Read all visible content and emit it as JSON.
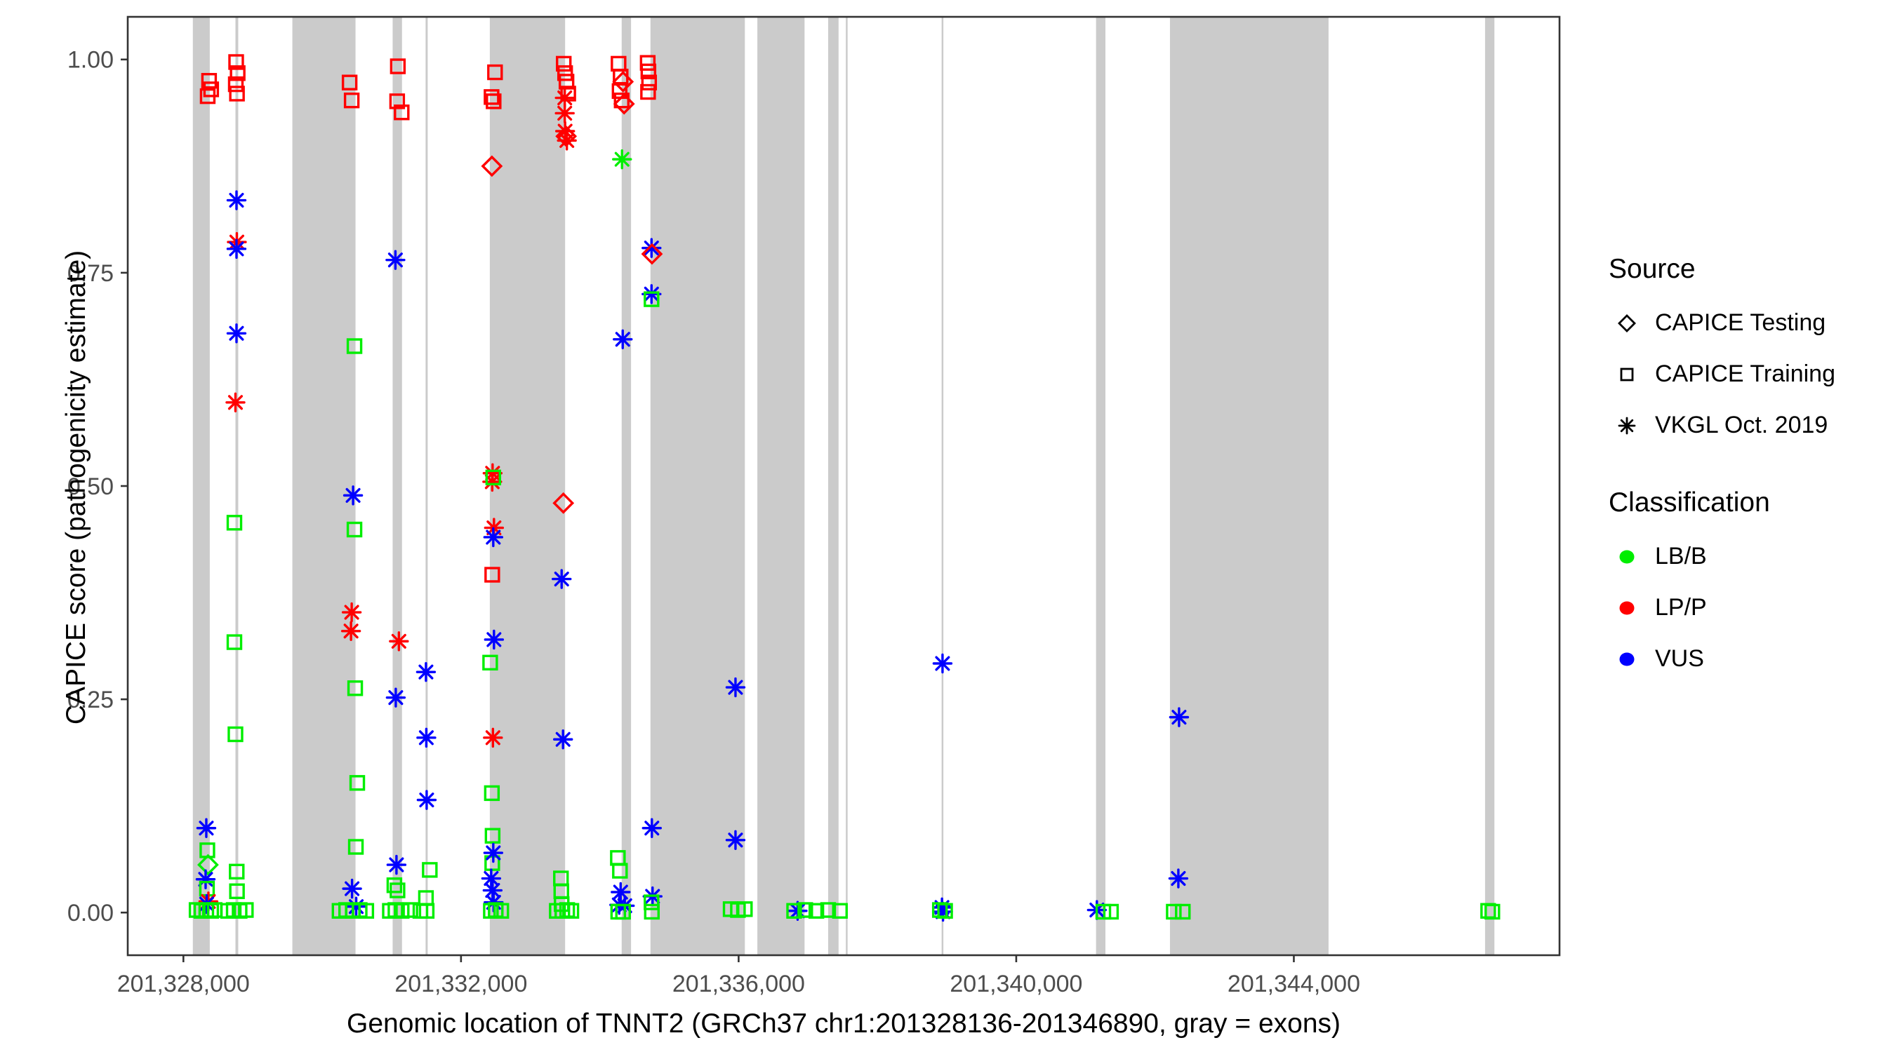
{
  "figure": {
    "background": "#ffffff",
    "panel_border_color": "#333333",
    "tick_color": "#333333",
    "tick_label_color": "#4d4d4d"
  },
  "chart_data": {
    "type": "scatter",
    "title": "",
    "xlabel": "Genomic location of TNNT2 (GRCh37 chr1:201328136-201346890, gray = exons)",
    "ylabel": "CAPICE score (pathogenicity estimate)",
    "x_domain": [
      201327198,
      201347828
    ],
    "y_domain": [
      -0.05,
      1.05
    ],
    "grid": false,
    "legend_position": "right",
    "x_ticks": [
      {
        "value": 201328000,
        "label": "201,328,000"
      },
      {
        "value": 201332000,
        "label": "201,332,000"
      },
      {
        "value": 201336000,
        "label": "201,336,000"
      },
      {
        "value": 201340000,
        "label": "201,340,000"
      },
      {
        "value": 201344000,
        "label": "201,344,000"
      }
    ],
    "y_ticks": [
      {
        "value": 0.0,
        "label": "0.00"
      },
      {
        "value": 0.25,
        "label": "0.25"
      },
      {
        "value": 0.5,
        "label": "0.50"
      },
      {
        "value": 0.75,
        "label": "0.75"
      },
      {
        "value": 1.0,
        "label": "1.00"
      }
    ],
    "exon_color": "#cbcbcb",
    "exons": [
      [
        201328136,
        201328380
      ],
      [
        201328750,
        201328790
      ],
      [
        201329570,
        201330480
      ],
      [
        201331015,
        201331150
      ],
      [
        201331490,
        201331520
      ],
      [
        201332415,
        201333500
      ],
      [
        201334315,
        201334450
      ],
      [
        201334730,
        201336090
      ],
      [
        201336270,
        201336950
      ],
      [
        201337290,
        201337440
      ],
      [
        201337545,
        201337570
      ],
      [
        201338925,
        201338950
      ],
      [
        201341150,
        201341285
      ],
      [
        201342215,
        201344500
      ],
      [
        201346755,
        201346890
      ]
    ],
    "class_colors": {
      "LB/B": "#00ee00",
      "LP/P": "#ff0000",
      "VUS": "#0000ff"
    },
    "source_shapes": {
      "CAPICE Testing": "diamond",
      "CAPICE Training": "square",
      "VKGL Oct. 2019": "asterisk"
    },
    "legend": {
      "source": {
        "title": "Source",
        "items": [
          {
            "label": "CAPICE Testing",
            "shape": "diamond"
          },
          {
            "label": "CAPICE Training",
            "shape": "square"
          },
          {
            "label": "VKGL Oct. 2019",
            "shape": "asterisk"
          }
        ]
      },
      "classification": {
        "title": "Classification",
        "items": [
          {
            "label": "LB/B",
            "color": "#00ee00"
          },
          {
            "label": "LP/P",
            "color": "#ff0000"
          },
          {
            "label": "VUS",
            "color": "#0000ff"
          }
        ]
      }
    },
    "point_format": [
      "genomic_position",
      "capice_score",
      "source_shape",
      "classification"
    ],
    "points": [
      [
        201328370,
        0.975,
        "square",
        "LP/P"
      ],
      [
        201328400,
        0.965,
        "square",
        "LP/P"
      ],
      [
        201328350,
        0.957,
        "square",
        "LP/P"
      ],
      [
        201328330,
        0.099,
        "asterisk",
        "VUS"
      ],
      [
        201328345,
        0.073,
        "square",
        "LB/B"
      ],
      [
        201328355,
        0.056,
        "diamond",
        "LB/B"
      ],
      [
        201328320,
        0.039,
        "asterisk",
        "VUS"
      ],
      [
        201328340,
        0.028,
        "square",
        "LB/B"
      ],
      [
        201328360,
        0.013,
        "asterisk",
        "LP/P"
      ],
      [
        201328335,
        0.01,
        "asterisk",
        "VUS"
      ],
      [
        201328190,
        0.003,
        "square",
        "LB/B"
      ],
      [
        201328260,
        0.002,
        "square",
        "LB/B"
      ],
      [
        201328330,
        0.003,
        "square",
        "LB/B"
      ],
      [
        201328400,
        0.002,
        "square",
        "LB/B"
      ],
      [
        201328450,
        0.003,
        "square",
        "LB/B"
      ],
      [
        201328760,
        0.997,
        "square",
        "LP/P"
      ],
      [
        201328782,
        0.984,
        "square",
        "LP/P"
      ],
      [
        201328755,
        0.971,
        "square",
        "LP/P"
      ],
      [
        201328772,
        0.96,
        "square",
        "LP/P"
      ],
      [
        201328765,
        0.835,
        "asterisk",
        "VUS"
      ],
      [
        201328770,
        0.786,
        "asterisk",
        "LP/P"
      ],
      [
        201328765,
        0.778,
        "asterisk",
        "VUS"
      ],
      [
        201328765,
        0.679,
        "asterisk",
        "VUS"
      ],
      [
        201328750,
        0.598,
        "asterisk",
        "LP/P"
      ],
      [
        201328735,
        0.457,
        "square",
        "LB/B"
      ],
      [
        201328735,
        0.317,
        "square",
        "LB/B"
      ],
      [
        201328750,
        0.209,
        "square",
        "LB/B"
      ],
      [
        201328768,
        0.048,
        "square",
        "LB/B"
      ],
      [
        201328772,
        0.025,
        "square",
        "LB/B"
      ],
      [
        201328645,
        0.002,
        "square",
        "LB/B"
      ],
      [
        201328725,
        0.003,
        "square",
        "LB/B"
      ],
      [
        201328810,
        0.002,
        "square",
        "LB/B"
      ],
      [
        201328900,
        0.003,
        "square",
        "LB/B"
      ],
      [
        201330395,
        0.973,
        "square",
        "LP/P"
      ],
      [
        201330425,
        0.952,
        "square",
        "LP/P"
      ],
      [
        201330465,
        0.664,
        "square",
        "LB/B"
      ],
      [
        201330445,
        0.489,
        "asterisk",
        "VUS"
      ],
      [
        201330465,
        0.449,
        "square",
        "LB/B"
      ],
      [
        201330425,
        0.352,
        "asterisk",
        "LP/P"
      ],
      [
        201330415,
        0.33,
        "asterisk",
        "LP/P"
      ],
      [
        201330475,
        0.263,
        "square",
        "LB/B"
      ],
      [
        201330505,
        0.152,
        "square",
        "LB/B"
      ],
      [
        201330485,
        0.077,
        "square",
        "LB/B"
      ],
      [
        201330430,
        0.028,
        "asterisk",
        "VUS"
      ],
      [
        201330490,
        0.007,
        "asterisk",
        "VUS"
      ],
      [
        201330250,
        0.002,
        "square",
        "LB/B"
      ],
      [
        201330345,
        0.003,
        "square",
        "LB/B"
      ],
      [
        201330440,
        0.002,
        "square",
        "LB/B"
      ],
      [
        201330540,
        0.003,
        "square",
        "LB/B"
      ],
      [
        201330635,
        0.002,
        "square",
        "LB/B"
      ],
      [
        201331090,
        0.992,
        "square",
        "LP/P"
      ],
      [
        201331080,
        0.951,
        "square",
        "LP/P"
      ],
      [
        201331145,
        0.938,
        "square",
        "LP/P"
      ],
      [
        201331055,
        0.765,
        "asterisk",
        "VUS"
      ],
      [
        201331105,
        0.318,
        "asterisk",
        "LP/P"
      ],
      [
        201331060,
        0.252,
        "asterisk",
        "VUS"
      ],
      [
        201331070,
        0.056,
        "asterisk",
        "VUS"
      ],
      [
        201331040,
        0.032,
        "square",
        "LB/B"
      ],
      [
        201331085,
        0.026,
        "square",
        "LB/B"
      ],
      [
        201330975,
        0.002,
        "square",
        "LB/B"
      ],
      [
        201331055,
        0.003,
        "square",
        "LB/B"
      ],
      [
        201331145,
        0.002,
        "square",
        "LB/B"
      ],
      [
        201331270,
        0.003,
        "square",
        "LB/B"
      ],
      [
        201331495,
        0.282,
        "asterisk",
        "VUS"
      ],
      [
        201331500,
        0.205,
        "asterisk",
        "VUS"
      ],
      [
        201331505,
        0.132,
        "asterisk",
        "VUS"
      ],
      [
        201331550,
        0.05,
        "square",
        "LB/B"
      ],
      [
        201331495,
        0.017,
        "square",
        "LB/B"
      ],
      [
        201331415,
        0.002,
        "square",
        "LB/B"
      ],
      [
        201331505,
        0.002,
        "square",
        "LB/B"
      ],
      [
        201332490,
        0.985,
        "square",
        "LP/P"
      ],
      [
        201332440,
        0.956,
        "square",
        "LP/P"
      ],
      [
        201332470,
        0.951,
        "square",
        "LP/P"
      ],
      [
        201332445,
        0.875,
        "diamond",
        "LP/P"
      ],
      [
        201332455,
        0.515,
        "asterisk",
        "LP/P"
      ],
      [
        201332450,
        0.505,
        "asterisk",
        "LP/P"
      ],
      [
        201332465,
        0.51,
        "square",
        "LB/B"
      ],
      [
        201332475,
        0.451,
        "asterisk",
        "LP/P"
      ],
      [
        201332465,
        0.44,
        "asterisk",
        "VUS"
      ],
      [
        201332450,
        0.396,
        "square",
        "LP/P"
      ],
      [
        201332475,
        0.32,
        "asterisk",
        "VUS"
      ],
      [
        201332420,
        0.293,
        "square",
        "LB/B"
      ],
      [
        201332460,
        0.205,
        "asterisk",
        "LP/P"
      ],
      [
        201332445,
        0.14,
        "square",
        "LB/B"
      ],
      [
        201332455,
        0.09,
        "square",
        "LB/B"
      ],
      [
        201332450,
        0.058,
        "square",
        "LB/B"
      ],
      [
        201332465,
        0.07,
        "asterisk",
        "VUS"
      ],
      [
        201332435,
        0.04,
        "asterisk",
        "VUS"
      ],
      [
        201332455,
        0.026,
        "asterisk",
        "VUS"
      ],
      [
        201332470,
        0.012,
        "asterisk",
        "VUS"
      ],
      [
        201332430,
        0.002,
        "square",
        "LB/B"
      ],
      [
        201332500,
        0.003,
        "square",
        "LB/B"
      ],
      [
        201332580,
        0.002,
        "square",
        "LB/B"
      ],
      [
        201333480,
        0.995,
        "square",
        "LP/P"
      ],
      [
        201333500,
        0.984,
        "square",
        "LP/P"
      ],
      [
        201333520,
        0.974,
        "square",
        "LP/P"
      ],
      [
        201333545,
        0.96,
        "square",
        "LP/P"
      ],
      [
        201333495,
        0.955,
        "asterisk",
        "LP/P"
      ],
      [
        201333495,
        0.937,
        "asterisk",
        "LP/P"
      ],
      [
        201333500,
        0.916,
        "asterisk",
        "LP/P"
      ],
      [
        201333525,
        0.905,
        "asterisk",
        "LP/P"
      ],
      [
        201333515,
        0.91,
        "diamond",
        "LP/P"
      ],
      [
        201333475,
        0.48,
        "diamond",
        "LP/P"
      ],
      [
        201333450,
        0.391,
        "asterisk",
        "VUS"
      ],
      [
        201333470,
        0.203,
        "asterisk",
        "VUS"
      ],
      [
        201333440,
        0.04,
        "square",
        "LB/B"
      ],
      [
        201333445,
        0.025,
        "square",
        "LB/B"
      ],
      [
        201333450,
        0.01,
        "square",
        "LB/B"
      ],
      [
        201333380,
        0.002,
        "square",
        "LB/B"
      ],
      [
        201333460,
        0.002,
        "square",
        "LB/B"
      ],
      [
        201333530,
        0.003,
        "square",
        "LB/B"
      ],
      [
        201333590,
        0.002,
        "square",
        "LB/B"
      ],
      [
        201334270,
        0.995,
        "square",
        "LP/P"
      ],
      [
        201334300,
        0.98,
        "square",
        "LP/P"
      ],
      [
        201334285,
        0.963,
        "square",
        "LP/P"
      ],
      [
        201334315,
        0.952,
        "square",
        "LP/P"
      ],
      [
        201334335,
        0.974,
        "diamond",
        "LP/P"
      ],
      [
        201334350,
        0.948,
        "diamond",
        "LP/P"
      ],
      [
        201334320,
        0.883,
        "asterisk",
        "LB/B"
      ],
      [
        201334330,
        0.672,
        "asterisk",
        "VUS"
      ],
      [
        201334260,
        0.064,
        "square",
        "LB/B"
      ],
      [
        201334290,
        0.049,
        "square",
        "LB/B"
      ],
      [
        201334300,
        0.024,
        "asterisk",
        "VUS"
      ],
      [
        201334280,
        0.009,
        "asterisk",
        "VUS"
      ],
      [
        201334360,
        0.008,
        "asterisk",
        "VUS"
      ],
      [
        201334265,
        0.001,
        "square",
        "LB/B"
      ],
      [
        201334335,
        0.001,
        "square",
        "LB/B"
      ],
      [
        201334690,
        0.996,
        "square",
        "LP/P"
      ],
      [
        201334700,
        0.986,
        "square",
        "LP/P"
      ],
      [
        201334710,
        0.973,
        "square",
        "LP/P"
      ],
      [
        201334695,
        0.962,
        "square",
        "LP/P"
      ],
      [
        201334745,
        0.779,
        "asterisk",
        "VUS"
      ],
      [
        201334752,
        0.772,
        "diamond",
        "LP/P"
      ],
      [
        201334745,
        0.725,
        "asterisk",
        "VUS"
      ],
      [
        201334745,
        0.719,
        "square",
        "LB/B"
      ],
      [
        201334750,
        0.099,
        "asterisk",
        "VUS"
      ],
      [
        201334760,
        0.019,
        "asterisk",
        "VUS"
      ],
      [
        201334745,
        0.012,
        "square",
        "LB/B"
      ],
      [
        201334750,
        0.001,
        "square",
        "LB/B"
      ],
      [
        201335955,
        0.264,
        "asterisk",
        "VUS"
      ],
      [
        201335955,
        0.085,
        "asterisk",
        "VUS"
      ],
      [
        201335885,
        0.004,
        "square",
        "LB/B"
      ],
      [
        201335990,
        0.003,
        "square",
        "LB/B"
      ],
      [
        201336090,
        0.004,
        "square",
        "LB/B"
      ],
      [
        201336850,
        0.002,
        "asterisk",
        "VUS"
      ],
      [
        201336800,
        0.002,
        "square",
        "LB/B"
      ],
      [
        201336960,
        0.003,
        "square",
        "LB/B"
      ],
      [
        201337120,
        0.002,
        "square",
        "LB/B"
      ],
      [
        201337290,
        0.003,
        "square",
        "LB/B"
      ],
      [
        201337460,
        0.002,
        "square",
        "LB/B"
      ],
      [
        201338938,
        0.292,
        "asterisk",
        "VUS"
      ],
      [
        201338930,
        0.006,
        "asterisk",
        "VUS"
      ],
      [
        201338945,
        0.001,
        "asterisk",
        "VUS"
      ],
      [
        201338900,
        0.003,
        "square",
        "LB/B"
      ],
      [
        201338975,
        0.002,
        "square",
        "LB/B"
      ],
      [
        201341162,
        0.003,
        "asterisk",
        "VUS"
      ],
      [
        201341255,
        0.001,
        "square",
        "LB/B"
      ],
      [
        201341365,
        0.001,
        "square",
        "LB/B"
      ],
      [
        201342346,
        0.229,
        "asterisk",
        "VUS"
      ],
      [
        201342336,
        0.04,
        "asterisk",
        "VUS"
      ],
      [
        201342270,
        0.001,
        "square",
        "LB/B"
      ],
      [
        201342400,
        0.001,
        "square",
        "LB/B"
      ],
      [
        201346800,
        0.002,
        "square",
        "LB/B"
      ],
      [
        201346860,
        0.001,
        "square",
        "LB/B"
      ]
    ]
  }
}
